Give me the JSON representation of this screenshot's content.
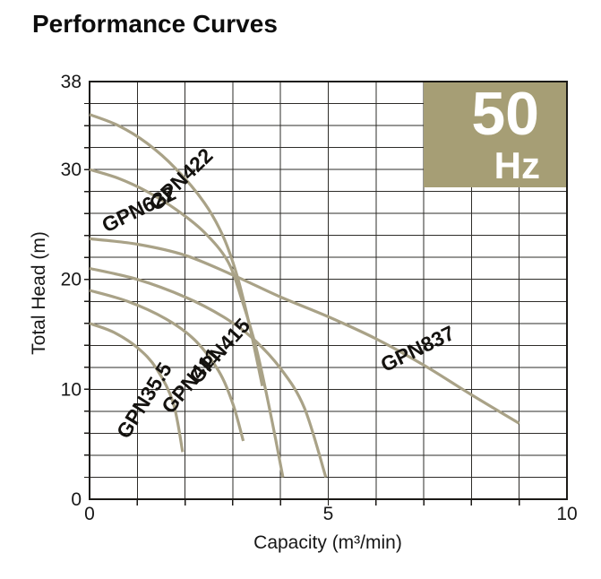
{
  "page": {
    "title": "Performance Curves"
  },
  "badge": {
    "value": "50",
    "unit": "Hz"
  },
  "colors": {
    "badge_bg": "#a69e75",
    "badge_text": "#ffffff",
    "curve": "#a9a287",
    "grid": "#2e2c29",
    "frame": "#1c1a17",
    "text": "#171717"
  },
  "axes": {
    "x": {
      "label": "Capacity (m³/min)",
      "tick_values": [
        0,
        5,
        10
      ],
      "tick_labels": [
        "0",
        "5",
        "10"
      ]
    },
    "y": {
      "label": "Total Head (m)",
      "tick_values": [
        38,
        30,
        20,
        10,
        0
      ],
      "tick_labels": [
        "38",
        "30",
        "20",
        "10",
        "0"
      ]
    }
  },
  "chart_data": {
    "type": "line",
    "title": "Performance Curves",
    "xlabel": "Capacity (m³/min)",
    "ylabel": "Total Head (m)",
    "xlim": [
      0,
      10
    ],
    "ylim": [
      0,
      38
    ],
    "x_grid_step": 1,
    "y_grid_step": 2,
    "grid": true,
    "frequency_badge": "50 Hz",
    "series": [
      {
        "name": "GPN422",
        "points": [
          [
            0,
            35
          ],
          [
            0.6,
            34
          ],
          [
            1.2,
            32.4
          ],
          [
            1.8,
            30.1
          ],
          [
            2.4,
            27.0
          ],
          [
            2.8,
            23.9
          ],
          [
            3.1,
            20.2
          ],
          [
            3.35,
            15.8
          ],
          [
            3.62,
            10.3
          ]
        ],
        "label": {
          "at": [
            1.91,
            29.1
          ],
          "angle": -44
        }
      },
      {
        "name": "GPN622",
        "points": [
          [
            0,
            30
          ],
          [
            0.6,
            29.2
          ],
          [
            1.2,
            28.0
          ],
          [
            1.8,
            26.4
          ],
          [
            2.4,
            24.3
          ],
          [
            2.9,
            21.6
          ],
          [
            3.2,
            18.0
          ],
          [
            3.5,
            13.6
          ],
          [
            3.8,
            7.6
          ],
          [
            4.05,
            2.0
          ]
        ],
        "label": {
          "at": [
            1.03,
            26.4
          ],
          "angle": -26
        }
      },
      {
        "name": "GPN837",
        "points": [
          [
            0,
            23.7
          ],
          [
            1,
            23.2
          ],
          [
            2,
            22.2
          ],
          [
            3,
            20.4
          ],
          [
            4,
            18.4
          ],
          [
            5,
            16.6
          ],
          [
            6,
            14.6
          ],
          [
            7,
            12.2
          ],
          [
            8,
            9.5
          ],
          [
            9,
            6.9
          ]
        ],
        "label": {
          "at": [
            6.87,
            13.7
          ],
          "angle": -26
        }
      },
      {
        "name": "GPN415",
        "points": [
          [
            0,
            21
          ],
          [
            1,
            20
          ],
          [
            2,
            18.4
          ],
          [
            2.8,
            16.6
          ],
          [
            3.4,
            14.7
          ],
          [
            4,
            11.9
          ],
          [
            4.5,
            8.3
          ],
          [
            4.95,
            2.0
          ]
        ],
        "label": {
          "at": [
            2.72,
            13.5
          ],
          "angle": -48
        }
      },
      {
        "name": "GPN411",
        "points": [
          [
            0,
            19
          ],
          [
            0.8,
            18
          ],
          [
            1.6,
            16.4
          ],
          [
            2.2,
            14.5
          ],
          [
            2.7,
            11.7
          ],
          [
            3.0,
            8.7
          ],
          [
            3.22,
            5.3
          ]
        ],
        "label": {
          "at": [
            2.12,
            10.8
          ],
          "angle": -50
        }
      },
      {
        "name": "GPN35.5",
        "points": [
          [
            0,
            16
          ],
          [
            0.5,
            15.2
          ],
          [
            1,
            13.8
          ],
          [
            1.4,
            11.9
          ],
          [
            1.75,
            8.8
          ],
          [
            1.95,
            4.3
          ]
        ],
        "label": {
          "at": [
            1.14,
            9.0
          ],
          "angle": -58
        }
      }
    ]
  }
}
